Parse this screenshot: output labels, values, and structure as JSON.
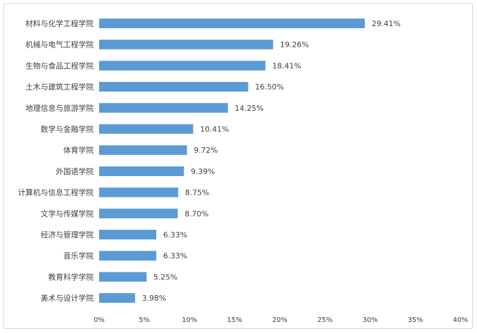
{
  "chart_data": {
    "type": "bar",
    "orientation": "horizontal",
    "categories": [
      "材料与化学工程学院",
      "机械与电气工程学院",
      "生物与食品工程学院",
      "土木与建筑工程学院",
      "地理信息与旅游学院",
      "数学与金融学院",
      "体育学院",
      "外国语学院",
      "计算机与信息工程学院",
      "文学与传媒学院",
      "经济与管理学院",
      "音乐学院",
      "教育科学学院",
      "美术与设计学院"
    ],
    "values": [
      29.41,
      19.26,
      18.41,
      16.5,
      14.25,
      10.41,
      9.72,
      9.39,
      8.75,
      8.7,
      6.33,
      6.33,
      5.25,
      3.98
    ],
    "value_labels": [
      "29.41%",
      "19.26%",
      "18.41%",
      "16.50%",
      "14.25%",
      "10.41%",
      "9.72%",
      "9.39%",
      "8.75%",
      "8.70%",
      "6.33%",
      "6.33%",
      "5.25%",
      "3.98%"
    ],
    "xlim": [
      0,
      40
    ],
    "x_ticks": [
      0,
      5,
      10,
      15,
      20,
      25,
      30,
      35,
      40
    ],
    "x_tick_labels": [
      "0%",
      "5%",
      "10%",
      "15%",
      "20%",
      "25%",
      "30%",
      "35%",
      "40%"
    ],
    "grid": false,
    "legend": "none",
    "bar_color": "#5b9bd5"
  }
}
